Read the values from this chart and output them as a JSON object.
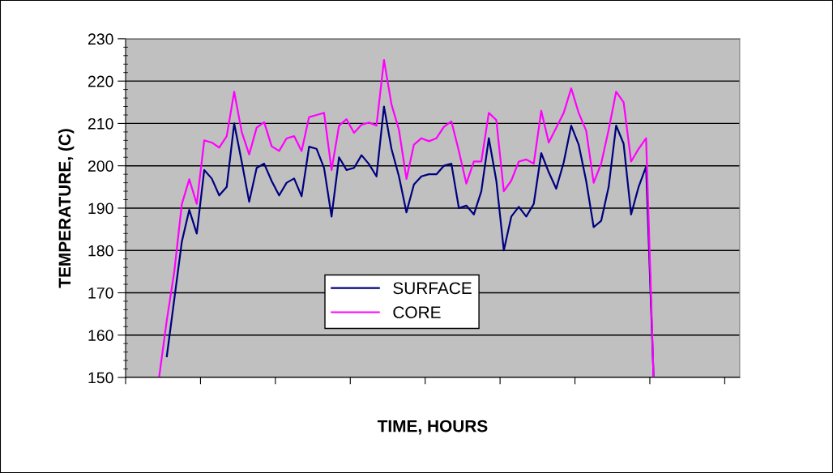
{
  "chart_data": {
    "type": "line",
    "xlabel": "TIME, HOURS",
    "ylabel": "TEMPERATURE, (C)",
    "categories": [
      null,
      null,
      null,
      null,
      null,
      null,
      null,
      null,
      null,
      null,
      null,
      null,
      null,
      null,
      null,
      null,
      null,
      null,
      null,
      null,
      null,
      null,
      null,
      null,
      null,
      null,
      null,
      null,
      null,
      null,
      null,
      null,
      null,
      null,
      null,
      null,
      null,
      null,
      null,
      null,
      null,
      null,
      null,
      null,
      null,
      null,
      null,
      null,
      null,
      null,
      null,
      null,
      null,
      null,
      null,
      null,
      null,
      null,
      null,
      null,
      null,
      null,
      null,
      null,
      null,
      null,
      null,
      null,
      null,
      null,
      null,
      null,
      null,
      null,
      null,
      null,
      null,
      null,
      null,
      null,
      null,
      null
    ],
    "series": [
      {
        "name": "SURFACE",
        "color": "#000080",
        "values": [
          null,
          null,
          null,
          null,
          null,
          155,
          168.5,
          182,
          189.6,
          184,
          199,
          197,
          193,
          195,
          210,
          201,
          191.5,
          199.5,
          200.5,
          196.4,
          193,
          196,
          197,
          192.8,
          204.5,
          204,
          199.5,
          188,
          202,
          199,
          199.5,
          202.5,
          200.4,
          197.5,
          214,
          204,
          197.5,
          189,
          195.6,
          197.5,
          198,
          198,
          200,
          200.5,
          190,
          190.6,
          188.5,
          194,
          206.5,
          196.5,
          180,
          188,
          190.3,
          188,
          191,
          203,
          198.5,
          194.6,
          200.8,
          209.5,
          205,
          196.4,
          185.5,
          187,
          195,
          209.5,
          205.2,
          188.5,
          195,
          199.8,
          150,
          null,
          null,
          null,
          null,
          null,
          null,
          null,
          null,
          null,
          null,
          null
        ]
      },
      {
        "name": "CORE",
        "color": "#ff00ff",
        "values": [
          null,
          null,
          null,
          null,
          150.4,
          163.5,
          175,
          190.9,
          196.8,
          191,
          206,
          205.5,
          204.3,
          207,
          217.5,
          208,
          202.7,
          209,
          210.3,
          204.6,
          203.5,
          206.5,
          207,
          203.5,
          211.5,
          212,
          212.5,
          199,
          209.5,
          211,
          207.8,
          209.7,
          210.2,
          209.5,
          225,
          214.5,
          208.5,
          196.9,
          205,
          206.5,
          205.8,
          206.5,
          209.2,
          210.5,
          203.5,
          195.8,
          201,
          201,
          212.5,
          210.8,
          194,
          196.5,
          201,
          201.5,
          200.5,
          213,
          205.5,
          209,
          212.5,
          218.3,
          212.5,
          208.3,
          196,
          200.5,
          208.5,
          217.5,
          215,
          201,
          204,
          206.5,
          150,
          null,
          null,
          null,
          null,
          null,
          null,
          null,
          null,
          null,
          null,
          null
        ]
      }
    ],
    "ylim": [
      150,
      230
    ],
    "yticks": [
      150,
      160,
      170,
      180,
      190,
      200,
      210,
      220,
      230
    ],
    "grid": "y",
    "legend": "bottom",
    "tick_labels": "y"
  }
}
